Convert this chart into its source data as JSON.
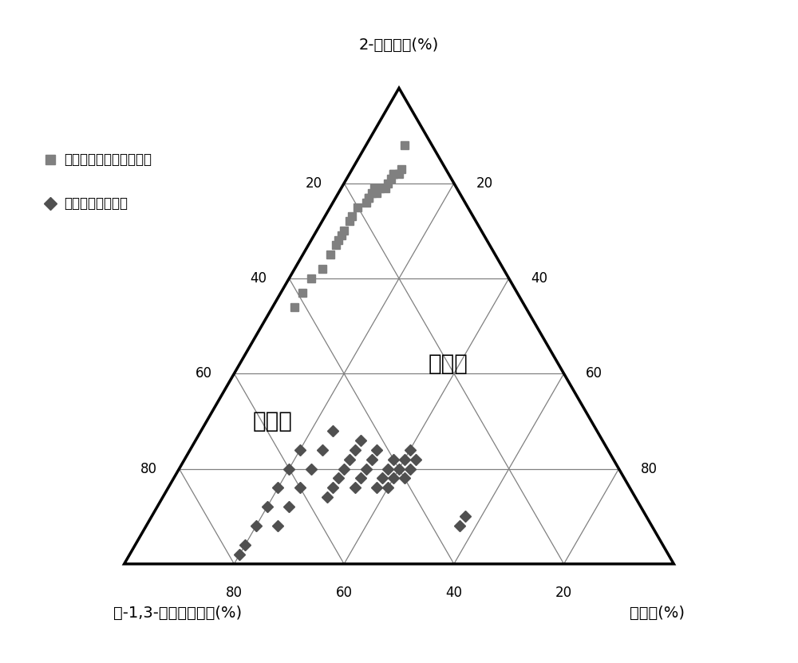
{
  "title_top": "2-甲基庚烷(%)",
  "label_left": "顺-1,3-二甲基环己烷(%)",
  "label_right": "正辛烷(%)",
  "legend_coal": "鄂尔多斯盆地上古煤成气",
  "legend_oil": "塔里木盆地油型气",
  "label_oil_zone": "油型气",
  "label_coal_zone": "煤型气",
  "coal_points": [
    [
      5,
      88,
      7
    ],
    [
      8,
      83,
      9
    ],
    [
      9,
      82,
      9
    ],
    [
      10,
      82,
      8
    ],
    [
      11,
      81,
      8
    ],
    [
      10,
      82,
      8
    ],
    [
      12,
      80,
      8
    ],
    [
      13,
      79,
      8
    ],
    [
      14,
      79,
      7
    ],
    [
      15,
      78,
      7
    ],
    [
      15,
      79,
      6
    ],
    [
      16,
      78,
      6
    ],
    [
      17,
      77,
      6
    ],
    [
      17,
      77,
      6
    ],
    [
      18,
      76,
      6
    ],
    [
      20,
      75,
      5
    ],
    [
      22,
      73,
      5
    ],
    [
      23,
      72,
      5
    ],
    [
      25,
      70,
      5
    ],
    [
      26,
      69,
      5
    ],
    [
      27,
      68,
      5
    ],
    [
      28,
      67,
      5
    ],
    [
      30,
      65,
      5
    ],
    [
      33,
      62,
      5
    ],
    [
      36,
      60,
      4
    ],
    [
      39,
      57,
      4
    ],
    [
      42,
      54,
      4
    ]
  ],
  "oil_points": [
    [
      33,
      10,
      57
    ],
    [
      35,
      8,
      57
    ],
    [
      36,
      22,
      42
    ],
    [
      38,
      20,
      42
    ],
    [
      40,
      18,
      42
    ],
    [
      36,
      24,
      40
    ],
    [
      38,
      22,
      40
    ],
    [
      40,
      20,
      40
    ],
    [
      42,
      18,
      40
    ],
    [
      44,
      16,
      40
    ],
    [
      40,
      22,
      38
    ],
    [
      42,
      20,
      38
    ],
    [
      44,
      18,
      38
    ],
    [
      46,
      16,
      38
    ],
    [
      42,
      24,
      34
    ],
    [
      44,
      22,
      34
    ],
    [
      46,
      20,
      34
    ],
    [
      48,
      18,
      34
    ],
    [
      50,
      16,
      34
    ],
    [
      44,
      26,
      30
    ],
    [
      46,
      24,
      30
    ],
    [
      48,
      22,
      30
    ],
    [
      50,
      20,
      30
    ],
    [
      52,
      18,
      30
    ],
    [
      54,
      16,
      30
    ],
    [
      56,
      14,
      30
    ],
    [
      48,
      28,
      24
    ],
    [
      52,
      24,
      24
    ],
    [
      56,
      20,
      24
    ],
    [
      60,
      16,
      24
    ],
    [
      64,
      12,
      24
    ],
    [
      68,
      8,
      24
    ],
    [
      56,
      24,
      20
    ],
    [
      60,
      20,
      20
    ],
    [
      64,
      16,
      20
    ],
    [
      68,
      12,
      20
    ],
    [
      72,
      8,
      20
    ],
    [
      76,
      4,
      20
    ],
    [
      78,
      2,
      20
    ]
  ],
  "coal_color": "#808080",
  "oil_color": "#505050",
  "background_color": "#ffffff",
  "line_color": "#000000",
  "grid_color": "#808080"
}
